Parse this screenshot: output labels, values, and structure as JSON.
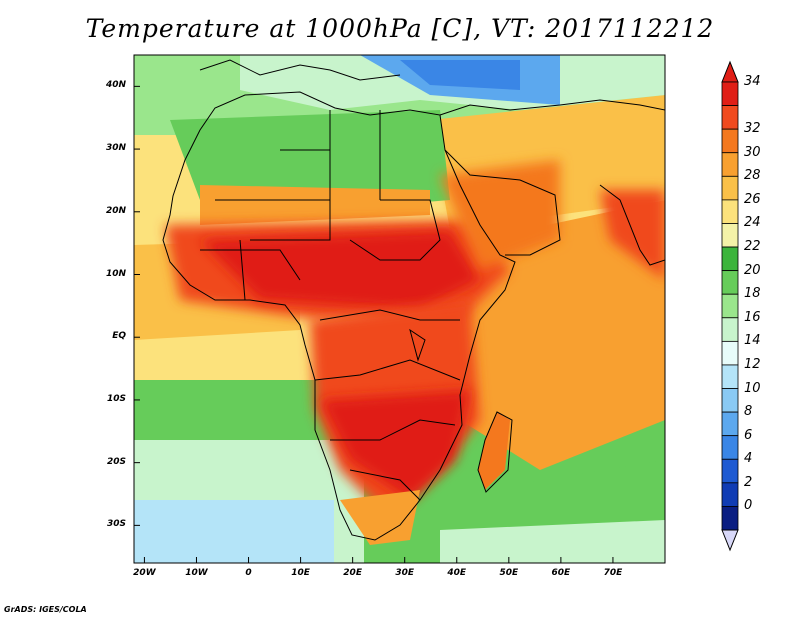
{
  "title": "Temperature at 1000hPa [C], VT: 2017112212",
  "credit": "GrADS: IGES/COLA",
  "map": {
    "lon_range": [
      -22,
      80
    ],
    "lat_range": [
      -36,
      45
    ],
    "lon_ticks": [
      {
        "value": -20,
        "label": "20W"
      },
      {
        "value": -10,
        "label": "10W"
      },
      {
        "value": 0,
        "label": "0"
      },
      {
        "value": 10,
        "label": "10E"
      },
      {
        "value": 20,
        "label": "20E"
      },
      {
        "value": 30,
        "label": "30E"
      },
      {
        "value": 40,
        "label": "40E"
      },
      {
        "value": 50,
        "label": "50E"
      },
      {
        "value": 60,
        "label": "60E"
      },
      {
        "value": 70,
        "label": "70E"
      }
    ],
    "lat_ticks": [
      {
        "value": 40,
        "label": "40N"
      },
      {
        "value": 30,
        "label": "30N"
      },
      {
        "value": 20,
        "label": "20N"
      },
      {
        "value": 10,
        "label": "10N"
      },
      {
        "value": 0,
        "label": "EQ"
      },
      {
        "value": -10,
        "label": "10S"
      },
      {
        "value": -20,
        "label": "20S"
      },
      {
        "value": -30,
        "label": "30S"
      }
    ]
  },
  "colorbar": {
    "labels": [
      "34",
      "32",
      "30",
      "28",
      "26",
      "24",
      "22",
      "20",
      "18",
      "16",
      "14",
      "12",
      "10",
      "8",
      "6",
      "4",
      "2",
      "0"
    ],
    "colors": [
      "#e01e16",
      "#f04a1e",
      "#f4781e",
      "#f8a030",
      "#fac048",
      "#fce27c",
      "#f4f2a8",
      "#3cb43c",
      "#66cc5a",
      "#9ae68c",
      "#c8f4cc",
      "#e8fcfa",
      "#b4e4f8",
      "#8acaf4",
      "#5ca8ee",
      "#3a86e6",
      "#1e5ad2",
      "#103cb4",
      "#0a1e82"
    ]
  }
}
